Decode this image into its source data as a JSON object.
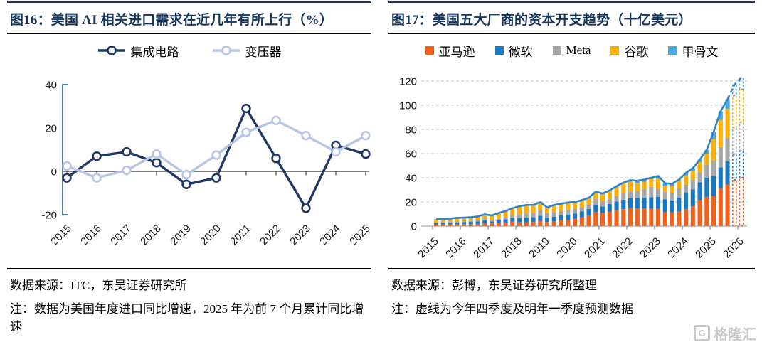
{
  "figures": [
    {
      "id": "fig16",
      "title": "图16：美国 AI 相关进口需求在近几年有所上行（%）",
      "source": "数据来源：ITC，东吴证券研究所",
      "note": "注：数据为美国年度进口同比增速，2025 年为前 7 个月累计同比增速",
      "chart_data": {
        "type": "line",
        "categories": [
          "2015",
          "2016",
          "2017",
          "2018",
          "2019",
          "2020",
          "2021",
          "2022",
          "2023",
          "2024",
          "2025"
        ],
        "series": [
          {
            "name": "集成电路",
            "color": "#1F3864",
            "values": [
              -3,
              7,
              9,
              4,
              -6,
              -3,
              29,
              6,
              -17,
              12,
              8
            ]
          },
          {
            "name": "变压器",
            "color": "#B7C5E6",
            "values": [
              2.5,
              -3,
              0.5,
              8,
              -1.5,
              7.5,
              18,
              23.5,
              16.5,
              9,
              16.5
            ]
          }
        ],
        "ylim": [
          -20,
          40
        ],
        "yticks": [
          -20,
          0,
          20,
          40
        ],
        "legend_position": "top",
        "grid": false,
        "marker": "open-circle"
      }
    },
    {
      "id": "fig17",
      "title": "图17：美国五大厂商的资本开支趋势（十亿美元）",
      "source": "数据来源：彭博，东吴证券研究所整理",
      "note": "注：虚线为今年四季度及明年一季度预测数据",
      "chart_data": {
        "type": "stacked-bar-with-total-line",
        "x_quarters": [
          "2015Q1",
          "2015Q2",
          "2015Q3",
          "2015Q4",
          "2016Q1",
          "2016Q2",
          "2016Q3",
          "2016Q4",
          "2017Q1",
          "2017Q2",
          "2017Q3",
          "2017Q4",
          "2018Q1",
          "2018Q2",
          "2018Q3",
          "2018Q4",
          "2019Q1",
          "2019Q2",
          "2019Q3",
          "2019Q4",
          "2020Q1",
          "2020Q2",
          "2020Q3",
          "2020Q4",
          "2021Q1",
          "2021Q2",
          "2021Q3",
          "2021Q4",
          "2022Q1",
          "2022Q2",
          "2022Q3",
          "2022Q4",
          "2023Q1",
          "2023Q2",
          "2023Q3",
          "2023Q4",
          "2024Q1",
          "2024Q2",
          "2024Q3",
          "2024Q4",
          "2025Q1",
          "2025Q2",
          "2025Q3",
          "2025Q4",
          "2026Q1"
        ],
        "year_labels": [
          "2015",
          "2016",
          "2017",
          "2018",
          "2019",
          "2020",
          "2021",
          "2022",
          "2023",
          "2024",
          "2025",
          "2026"
        ],
        "forecast_quarters": [
          "2025Q4",
          "2026Q1"
        ],
        "series": [
          {
            "name": "亚马逊",
            "color": "#F1611C",
            "values": [
              1.2,
              1.3,
              1.4,
              1.5,
              1.6,
              1.7,
              1.8,
              2.2,
              2.2,
              2.5,
              3.0,
              3.6,
              3.1,
              3.2,
              3.4,
              4.4,
              3.4,
              3.9,
              4.7,
              5.0,
              6.0,
              7.2,
              8.9,
              11.6,
              10.8,
              11.8,
              12.9,
              14.0,
              14.9,
              14.6,
              14.7,
              14.5,
              14.2,
              11.5,
              11.3,
              12.1,
              13.9,
              16.4,
              21.3,
              24.2,
              25.0,
              31.4,
              34.2,
              38.0,
              40.0
            ]
          },
          {
            "name": "微软",
            "color": "#1878C2",
            "values": [
              1.4,
              1.4,
              1.5,
              1.6,
              1.7,
              1.8,
              2.1,
              2.5,
              1.7,
              2.3,
              2.7,
              3.2,
              3.5,
              3.8,
              3.9,
              4.1,
              3.4,
              3.9,
              4.2,
              4.5,
              4.4,
              5.0,
              5.2,
              5.9,
              5.4,
              6.5,
              7.4,
              7.9,
              8.3,
              8.7,
              8.9,
              9.5,
              10.1,
              10.7,
              9.9,
              11.5,
              14.0,
              13.9,
              14.9,
              15.8,
              16.7,
              17.1,
              19.4,
              21.5,
              22.5
            ]
          },
          {
            "name": "Meta",
            "color": "#A6A6A6",
            "values": [
              0.5,
              0.6,
              0.6,
              0.7,
              1.1,
              1.1,
              1.1,
              1.2,
              1.2,
              1.5,
              1.8,
              2.3,
              2.8,
              3.5,
              3.3,
              4.4,
              3.8,
              3.8,
              3.7,
              4.2,
              3.7,
              3.5,
              3.9,
              4.8,
              4.4,
              4.5,
              4.5,
              5.4,
              5.5,
              5.7,
              6.8,
              8.5,
              6.8,
              6.2,
              6.5,
              7.6,
              6.4,
              8.2,
              8.3,
              10.6,
              12.9,
              17.0,
              19.5,
              22.0,
              23.5
            ]
          },
          {
            "name": "谷歌",
            "color": "#FFAF00",
            "values": [
              2.4,
              2.4,
              2.4,
              2.7,
              2.3,
              2.4,
              2.7,
              3.4,
              3.3,
              4.1,
              4.6,
              5.3,
              6.6,
              6.5,
              6.4,
              6.4,
              4.5,
              5.5,
              5.5,
              5.4,
              5.5,
              5.4,
              5.1,
              5.7,
              5.9,
              6.2,
              7.6,
              8.0,
              8.5,
              6.8,
              6.1,
              6.3,
              8.2,
              4.9,
              5.3,
              6.3,
              7.7,
              7.2,
              8.4,
              9.4,
              17.2,
              22.4,
              24.0,
              26.5,
              27.0
            ]
          },
          {
            "name": "甲骨文",
            "color": "#47A8DF",
            "values": [
              0.3,
              0.3,
              0.3,
              0.3,
              0.3,
              0.3,
              0.3,
              0.4,
              0.4,
              0.4,
              0.4,
              0.4,
              0.5,
              0.5,
              0.5,
              0.5,
              0.4,
              0.4,
              0.4,
              0.4,
              0.4,
              0.4,
              0.4,
              0.5,
              0.5,
              0.5,
              0.6,
              0.7,
              0.8,
              1.7,
              2.0,
              1.2,
              2.2,
              2.2,
              2.0,
              1.0,
              2.0,
              2.3,
              2.1,
              3.0,
              6.2,
              7.1,
              7.9,
              9.0,
              10.0
            ]
          }
        ],
        "total_line_color": "#2E84C7",
        "ylim": [
          0,
          120
        ],
        "yticks": [
          0,
          20,
          40,
          60,
          80,
          100,
          120
        ],
        "grid": "dashed-horizontal",
        "legend_position": "top"
      }
    }
  ],
  "watermark": {
    "text": "格隆汇",
    "icon_letter": "G"
  },
  "colors": {
    "title_navy": "#17365D",
    "rule_black": "#000000",
    "axis_gray": "#595959",
    "grid_gray": "#C8C8C8"
  }
}
